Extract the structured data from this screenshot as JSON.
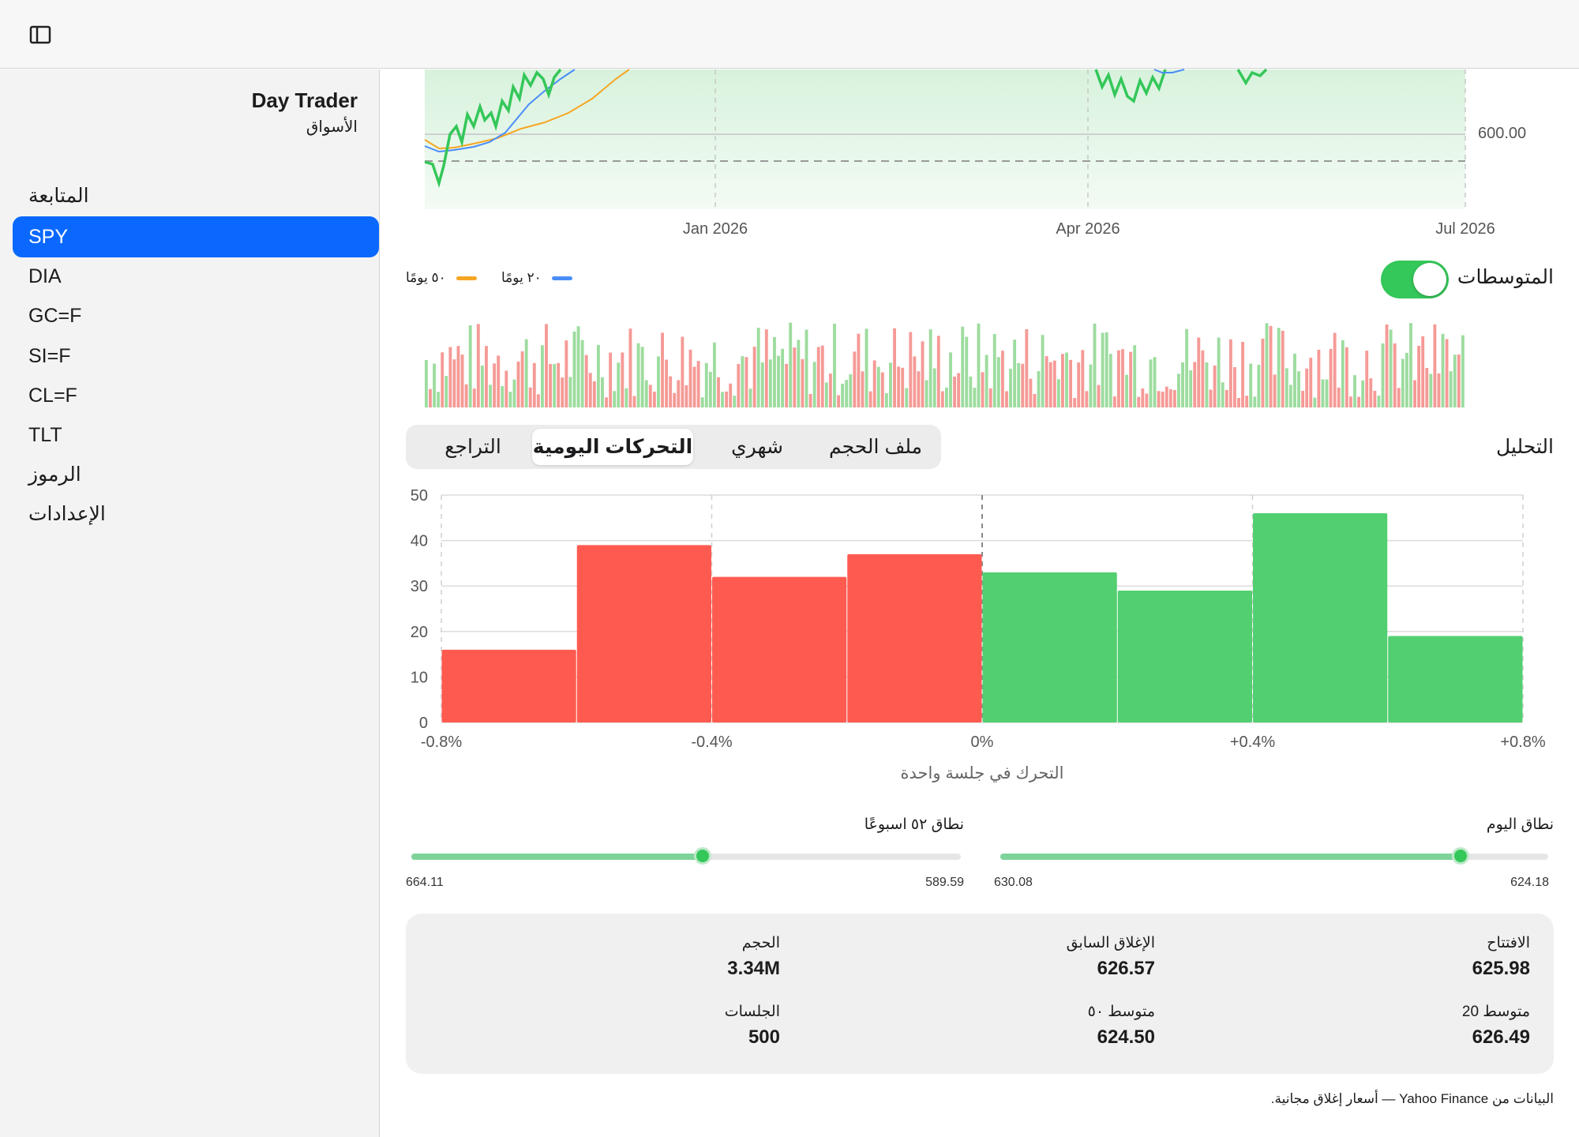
{
  "sidebar": {
    "app_title": "Day Trader",
    "app_subtitle": "الأسواق",
    "items": [
      {
        "label": "المتابعة",
        "selected": false
      },
      {
        "label": "SPY",
        "selected": true
      },
      {
        "label": "DIA",
        "selected": false
      },
      {
        "label": "GC=F",
        "selected": false
      },
      {
        "label": "SI=F",
        "selected": false
      },
      {
        "label": "CL=F",
        "selected": false
      },
      {
        "label": "TLT",
        "selected": false
      },
      {
        "label": "الرموز",
        "selected": false
      },
      {
        "label": "الإعدادات",
        "selected": false
      }
    ]
  },
  "price_chart": {
    "x_ticks": [
      "Jan 2026",
      "Apr 2026",
      "Jul 2026"
    ],
    "y_tick": "600.00"
  },
  "averages": {
    "label": "المتوسطات",
    "enabled": true,
    "legend": [
      {
        "label": "٢٠ يومًا",
        "color": "#4a8df8"
      },
      {
        "label": "٥٠ يومًا",
        "color": "#f5a623"
      }
    ]
  },
  "analysis": {
    "title": "التحليل",
    "tabs": [
      {
        "label": "ملف الحجم",
        "active": false
      },
      {
        "label": "شهري",
        "active": false
      },
      {
        "label": "التحركات اليومية",
        "active": true
      },
      {
        "label": "التراجع",
        "active": false
      }
    ]
  },
  "chart_data": {
    "type": "bar",
    "categories": [
      "-0.8%..-0.6%",
      "-0.6%..-0.4%",
      "-0.4%..-0.2%",
      "-0.2%..0%",
      "0%..+0.2%",
      "+0.2%..+0.4%",
      "+0.4%..+0.6%",
      "+0.6%..+0.8%"
    ],
    "values": [
      16,
      39,
      32,
      37,
      33,
      29,
      46,
      19
    ],
    "colors": [
      "#ff5a50",
      "#ff5a50",
      "#ff5a50",
      "#ff5a50",
      "#52cf70",
      "#52cf70",
      "#52cf70",
      "#52cf70"
    ],
    "x_tick_labels": [
      "-0.8%",
      "-0.4%",
      "0%",
      "+0.4%",
      "+0.8%"
    ],
    "y_ticks": [
      "0",
      "10",
      "20",
      "30",
      "40",
      "50"
    ],
    "ylim": [
      0,
      50
    ],
    "xlabel": "التحرك في جلسة واحدة",
    "grid": true
  },
  "ranges": {
    "day": {
      "label": "نطاق اليوم",
      "low": "624.18",
      "high": "630.08",
      "position": 0.16
    },
    "week52": {
      "label": "نطاق ٥٢ اسبوعًا",
      "low": "589.59",
      "high": "664.11",
      "position": 0.47
    }
  },
  "stats": {
    "open_label": "الافتتاح",
    "open": "625.98",
    "prev_close_label": "الإغلاق السابق",
    "prev_close": "626.57",
    "volume_label": "الحجم",
    "volume": "3.34M",
    "ma20_label": "متوسط 20",
    "ma20": "626.49",
    "ma50_label": "متوسط ٥٠",
    "ma50": "624.50",
    "sessions_label": "الجلسات",
    "sessions": "500"
  },
  "footer": "البيانات من Yahoo Finance — أسعار إغلاق مجانية."
}
